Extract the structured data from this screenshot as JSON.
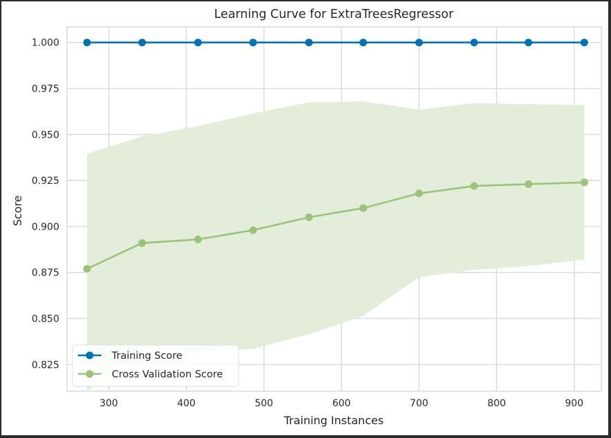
{
  "chart_data": {
    "type": "line",
    "title": "Learning Curve for ExtraTreesRegressor",
    "xlabel": "Training Instances",
    "ylabel": "Score",
    "xlim": [
      246,
      935
    ],
    "ylim": [
      0.8105,
      1.0085
    ],
    "xticks": [
      300,
      400,
      500,
      600,
      700,
      800,
      900
    ],
    "xtick_labels": [
      "300",
      "400",
      "500",
      "600",
      "700",
      "800",
      "900"
    ],
    "yticks": [
      0.825,
      0.85,
      0.875,
      0.9,
      0.925,
      0.95,
      0.975,
      1.0
    ],
    "ytick_labels": [
      "0.825",
      "0.850",
      "0.875",
      "0.900",
      "0.925",
      "0.950",
      "0.975",
      "1.000"
    ],
    "grid": true,
    "legend_position": "bottom-left",
    "x": [
      272,
      343,
      415,
      486,
      558,
      628,
      700,
      771,
      841,
      913
    ],
    "series": [
      {
        "name": "Training Score",
        "color": "#0072b2",
        "values": [
          1.0,
          1.0,
          1.0,
          1.0,
          1.0,
          1.0,
          1.0,
          1.0,
          1.0,
          1.0
        ]
      },
      {
        "name": "Cross Validation Score",
        "color": "#9bc37b",
        "values": [
          0.877,
          0.891,
          0.893,
          0.898,
          0.905,
          0.91,
          0.918,
          0.922,
          0.923,
          0.924
        ],
        "band_upper": [
          0.9395,
          0.949,
          0.9545,
          0.9615,
          0.9675,
          0.968,
          0.9635,
          0.967,
          0.9665,
          0.966
        ],
        "band_lower": [
          0.8105,
          0.8335,
          0.8315,
          0.8335,
          0.8415,
          0.8515,
          0.8725,
          0.8765,
          0.8785,
          0.882
        ],
        "band_color": "#e3edd9"
      }
    ]
  }
}
